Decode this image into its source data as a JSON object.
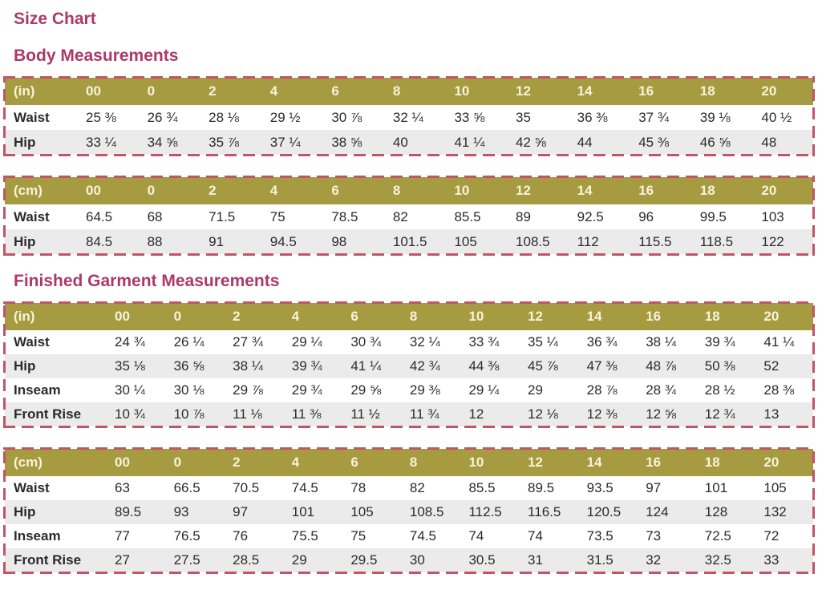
{
  "page_title": "Size Chart",
  "colors": {
    "heading": "#ac3a66",
    "table_header_bg": "#a79b41",
    "table_header_text": "#f7f3da",
    "alt_row_bg": "#ebebeb",
    "body_text": "#2b2b2b",
    "dashed_border": "#c25468"
  },
  "sections": [
    {
      "heading": "Body Measurements",
      "tables": [
        {
          "unit_label": "(in)",
          "sizes": [
            "00",
            "0",
            "2",
            "4",
            "6",
            "8",
            "10",
            "12",
            "14",
            "16",
            "18",
            "20"
          ],
          "rows": [
            {
              "label": "Waist",
              "values": [
                "25 ⅜",
                "26 ¾",
                "28 ⅛",
                "29 ½",
                "30 ⅞",
                "32 ¼",
                "33 ⅝",
                "35",
                "36 ⅜",
                "37 ¾",
                "39 ⅛",
                "40 ½"
              ]
            },
            {
              "label": "Hip",
              "values": [
                "33 ¼",
                "34 ⅝",
                "35 ⅞",
                "37 ¼",
                "38 ⅝",
                "40",
                "41 ¼",
                "42 ⅝",
                "44",
                "45 ⅜",
                "46 ⅝",
                "48"
              ]
            }
          ]
        },
        {
          "unit_label": "(cm)",
          "sizes": [
            "00",
            "0",
            "2",
            "4",
            "6",
            "8",
            "10",
            "12",
            "14",
            "16",
            "18",
            "20"
          ],
          "rows": [
            {
              "label": "Waist",
              "values": [
                "64.5",
                "68",
                "71.5",
                "75",
                "78.5",
                "82",
                "85.5",
                "89",
                "92.5",
                "96",
                "99.5",
                "103"
              ]
            },
            {
              "label": "Hip",
              "values": [
                "84.5",
                "88",
                "91",
                "94.5",
                "98",
                "101.5",
                "105",
                "108.5",
                "112",
                "115.5",
                "118.5",
                "122"
              ]
            }
          ]
        }
      ]
    },
    {
      "heading": "Finished Garment Measurements",
      "tables": [
        {
          "unit_label": "(in)",
          "sizes": [
            "00",
            "0",
            "2",
            "4",
            "6",
            "8",
            "10",
            "12",
            "14",
            "16",
            "18",
            "20"
          ],
          "rows": [
            {
              "label": "Waist",
              "values": [
                "24 ¾",
                "26 ¼",
                "27 ¾",
                "29 ¼",
                "30 ¾",
                "32 ¼",
                "33 ¾",
                "35 ¼",
                "36 ¾",
                "38 ¼",
                "39 ¾",
                "41 ¼"
              ]
            },
            {
              "label": "Hip",
              "values": [
                "35 ⅛",
                "36 ⅝",
                "38 ¼",
                "39 ¾",
                "41 ¼",
                "42 ¾",
                "44 ⅜",
                "45 ⅞",
                "47 ⅜",
                "48 ⅞",
                "50 ⅜",
                "52"
              ]
            },
            {
              "label": "Inseam",
              "values": [
                "30 ¼",
                "30 ⅛",
                "29 ⅞",
                "29 ¾",
                "29 ⅝",
                "29 ⅜",
                "29 ¼",
                "29",
                "28 ⅞",
                "28 ¾",
                "28 ½",
                "28 ⅜"
              ]
            },
            {
              "label": "Front Rise",
              "values": [
                "10 ¾",
                "10 ⅞",
                "11 ⅛",
                "11 ⅜",
                "11 ½",
                "11 ¾",
                "12",
                "12 ⅛",
                "12 ⅜",
                "12 ⅝",
                "12 ¾",
                "13"
              ]
            }
          ]
        },
        {
          "unit_label": "(cm)",
          "sizes": [
            "00",
            "0",
            "2",
            "4",
            "6",
            "8",
            "10",
            "12",
            "14",
            "16",
            "18",
            "20"
          ],
          "rows": [
            {
              "label": "Waist",
              "values": [
                "63",
                "66.5",
                "70.5",
                "74.5",
                "78",
                "82",
                "85.5",
                "89.5",
                "93.5",
                "97",
                "101",
                "105"
              ]
            },
            {
              "label": "Hip",
              "values": [
                "89.5",
                "93",
                "97",
                "101",
                "105",
                "108.5",
                "112.5",
                "116.5",
                "120.5",
                "124",
                "128",
                "132"
              ]
            },
            {
              "label": "Inseam",
              "values": [
                "77",
                "76.5",
                "76",
                "75.5",
                "75",
                "74.5",
                "74",
                "74",
                "73.5",
                "73",
                "72.5",
                "72"
              ]
            },
            {
              "label": "Front Rise",
              "values": [
                "27",
                "27.5",
                "28.5",
                "29",
                "29.5",
                "30",
                "30.5",
                "31",
                "31.5",
                "32",
                "32.5",
                "33"
              ]
            }
          ]
        }
      ]
    }
  ]
}
